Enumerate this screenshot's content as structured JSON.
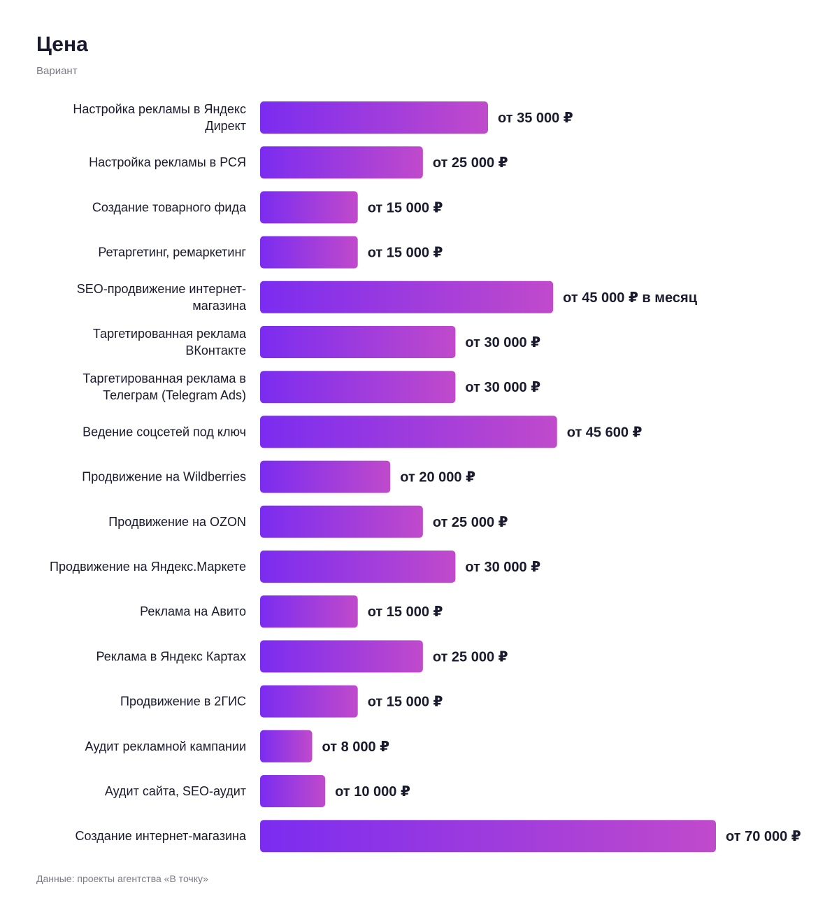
{
  "title": "Цена",
  "subtitle": "Вариант",
  "footer": "Данные: проекты агентства «В точку»",
  "colors": {
    "bar_start": "#7b2cf0",
    "bar_end": "#c04acb",
    "text": "#1a1a2e",
    "muted": "#7a7a86"
  },
  "chart_data": {
    "type": "bar",
    "orientation": "horizontal",
    "title": "Цена",
    "subtitle": "Вариант",
    "xlim": [
      0,
      70000
    ],
    "grid": false,
    "legend": "none",
    "categories": [
      "Настройка рекламы в Яндекс Директ",
      "Настройка рекламы в РСЯ",
      "Создание товарного фида",
      "Ретаргетинг, ремаркетинг",
      "SEO-продвижение интернет-магазина",
      "Таргетированная реклама ВКонтакте",
      "Таргетированная реклама в Телеграм (Telegram Ads)",
      "Ведение соцсетей под ключ",
      "Продвижение на Wildberries",
      "Продвижение на OZON",
      "Продвижение на Яндекс.Маркете",
      "Реклама на Авито",
      "Реклама в Яндекс Картах",
      "Продвижение в 2ГИС",
      "Аудит рекламной кампании",
      "Аудит сайта, SEO-аудит",
      "Создание интернет-магазина"
    ],
    "values": [
      35000,
      25000,
      15000,
      15000,
      45000,
      30000,
      30000,
      45600,
      20000,
      25000,
      30000,
      15000,
      25000,
      15000,
      8000,
      10000,
      70000
    ],
    "value_labels": [
      "от 35 000 ₽",
      "от 25 000 ₽",
      "от 15 000 ₽",
      "от 15 000 ₽",
      "от 45 000 ₽ в месяц",
      "от 30 000 ₽",
      "от 30 000 ₽",
      "от 45 600 ₽",
      "от 20 000 ₽",
      "от 25 000 ₽",
      "от 30 000 ₽",
      "от 15 000 ₽",
      "от 25 000 ₽",
      "от 15 000 ₽",
      "от 8 000 ₽",
      "от 10 000 ₽",
      "от 70 000 ₽"
    ],
    "label_lines": [
      [
        "Настройка рекламы в Яндекс",
        "Директ"
      ],
      [
        "Настройка рекламы в РСЯ"
      ],
      [
        "Создание товарного фида"
      ],
      [
        "Ретаргетинг, ремаркетинг"
      ],
      [
        "SEO-продвижение интернет-",
        "магазина"
      ],
      [
        "Таргетированная реклама",
        "ВКонтакте"
      ],
      [
        "Таргетированная реклама в",
        "Телеграм (Telegram Ads)"
      ],
      [
        "Ведение соцсетей под ключ"
      ],
      [
        "Продвижение на Wildberries"
      ],
      [
        "Продвижение на OZON"
      ],
      [
        "Продвижение на Яндекс.Маркете"
      ],
      [
        "Реклама на Авито"
      ],
      [
        "Реклама в Яндекс Картах"
      ],
      [
        "Продвижение в 2ГИС"
      ],
      [
        "Аудит рекламной кампании"
      ],
      [
        "Аудит сайта, SEO-аудит"
      ],
      [
        "Создание интернет-магазина"
      ]
    ]
  }
}
